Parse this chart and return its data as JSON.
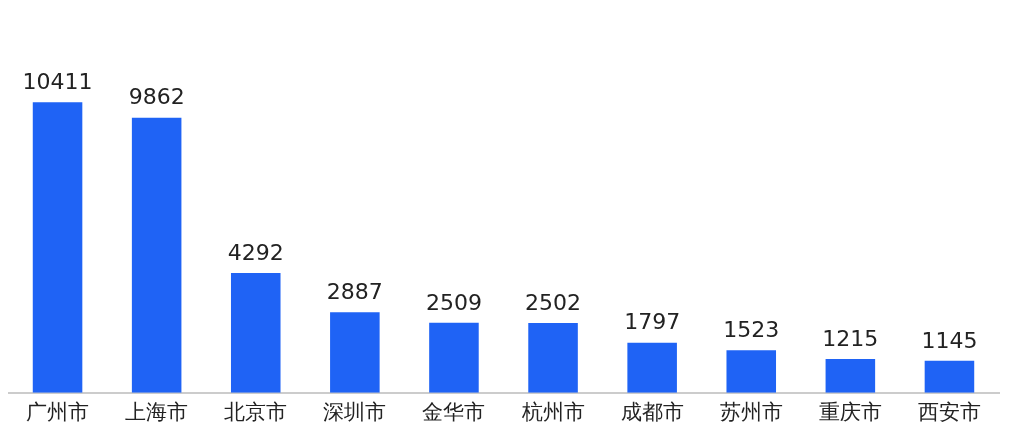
{
  "chart_data": {
    "type": "bar",
    "categories": [
      "广州市",
      "上海市",
      "北京市",
      "深圳市",
      "金华市",
      "杭州市",
      "成都市",
      "苏州市",
      "重庆市",
      "西安市"
    ],
    "values": [
      10411,
      9862,
      4292,
      2887,
      2509,
      2502,
      1797,
      1523,
      1215,
      1145
    ],
    "color": "#1f63f5",
    "data_labels": true,
    "grid": false,
    "legend": false
  }
}
